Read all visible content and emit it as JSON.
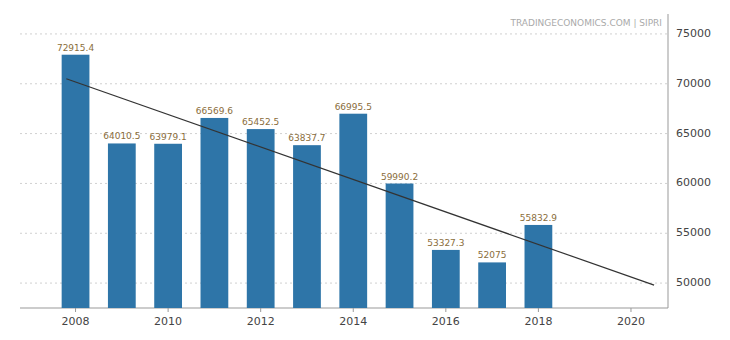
{
  "chart_data": {
    "type": "bar",
    "x": [
      2008,
      2009,
      2010,
      2011,
      2012,
      2013,
      2014,
      2015,
      2016,
      2017,
      2018
    ],
    "values": [
      72915.4,
      64010.5,
      63979.1,
      66569.6,
      65452.5,
      63837.7,
      66995.5,
      59990.2,
      53327.3,
      52075,
      55832.9
    ],
    "color": "#2e75a8",
    "data_labels": true,
    "trend": {
      "type": "line",
      "x": [
        2007.8,
        2020.5
      ],
      "values": [
        70500,
        49800
      ],
      "color": "#333333"
    },
    "annotations": [
      "TRADINGECONOMICS.COM | SIPRI"
    ],
    "xlim": [
      2006.8,
      2020.8
    ],
    "xticks": [
      2008,
      2010,
      2012,
      2014,
      2016,
      2018,
      2020
    ],
    "ylim": [
      47500,
      77000
    ],
    "yticks": [
      50000,
      55000,
      60000,
      65000,
      70000,
      75000
    ],
    "grid": true
  }
}
